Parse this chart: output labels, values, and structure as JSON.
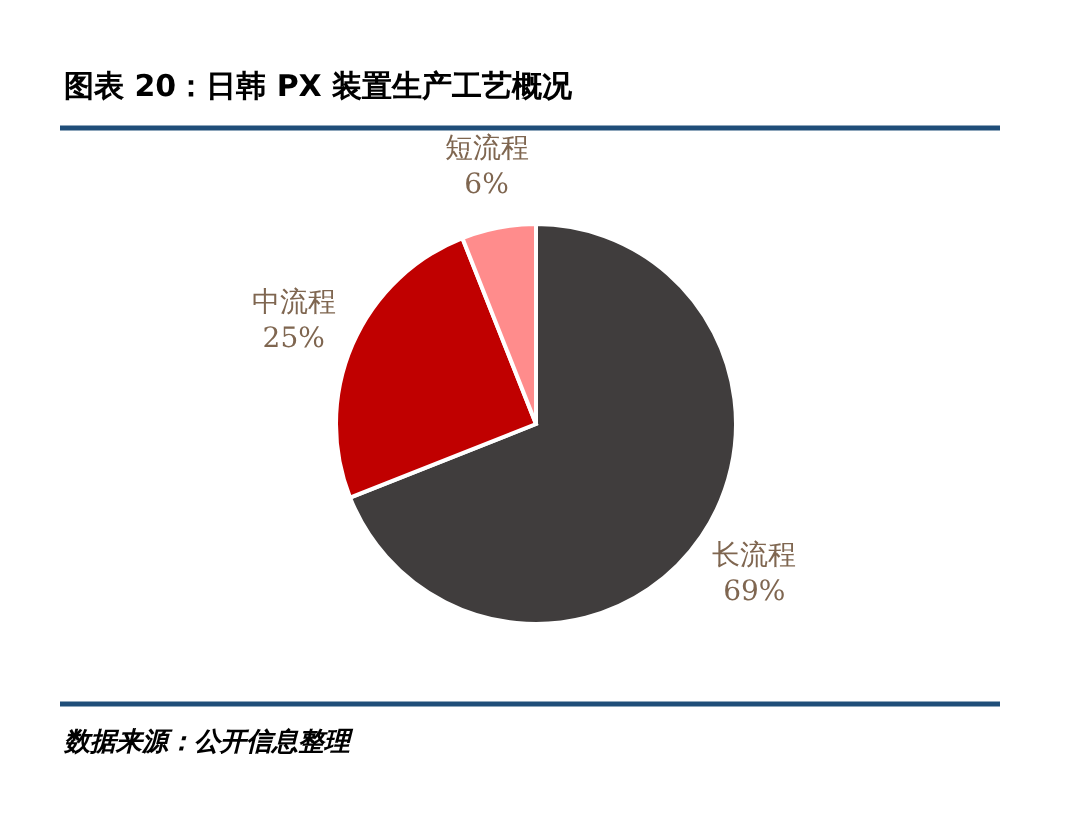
{
  "chart_data": {
    "type": "pie",
    "title": "图表 20：日韩 PX 装置生产工艺概况",
    "categories": [
      "长流程",
      "中流程",
      "短流程"
    ],
    "values": [
      69,
      25,
      6
    ],
    "colors": [
      "#403d3d",
      "#c00000",
      "#ff8c8c"
    ],
    "value_labels": [
      "69%",
      "25%",
      "6%"
    ],
    "annotations": [
      "数据来源：公开信息整理"
    ]
  }
}
